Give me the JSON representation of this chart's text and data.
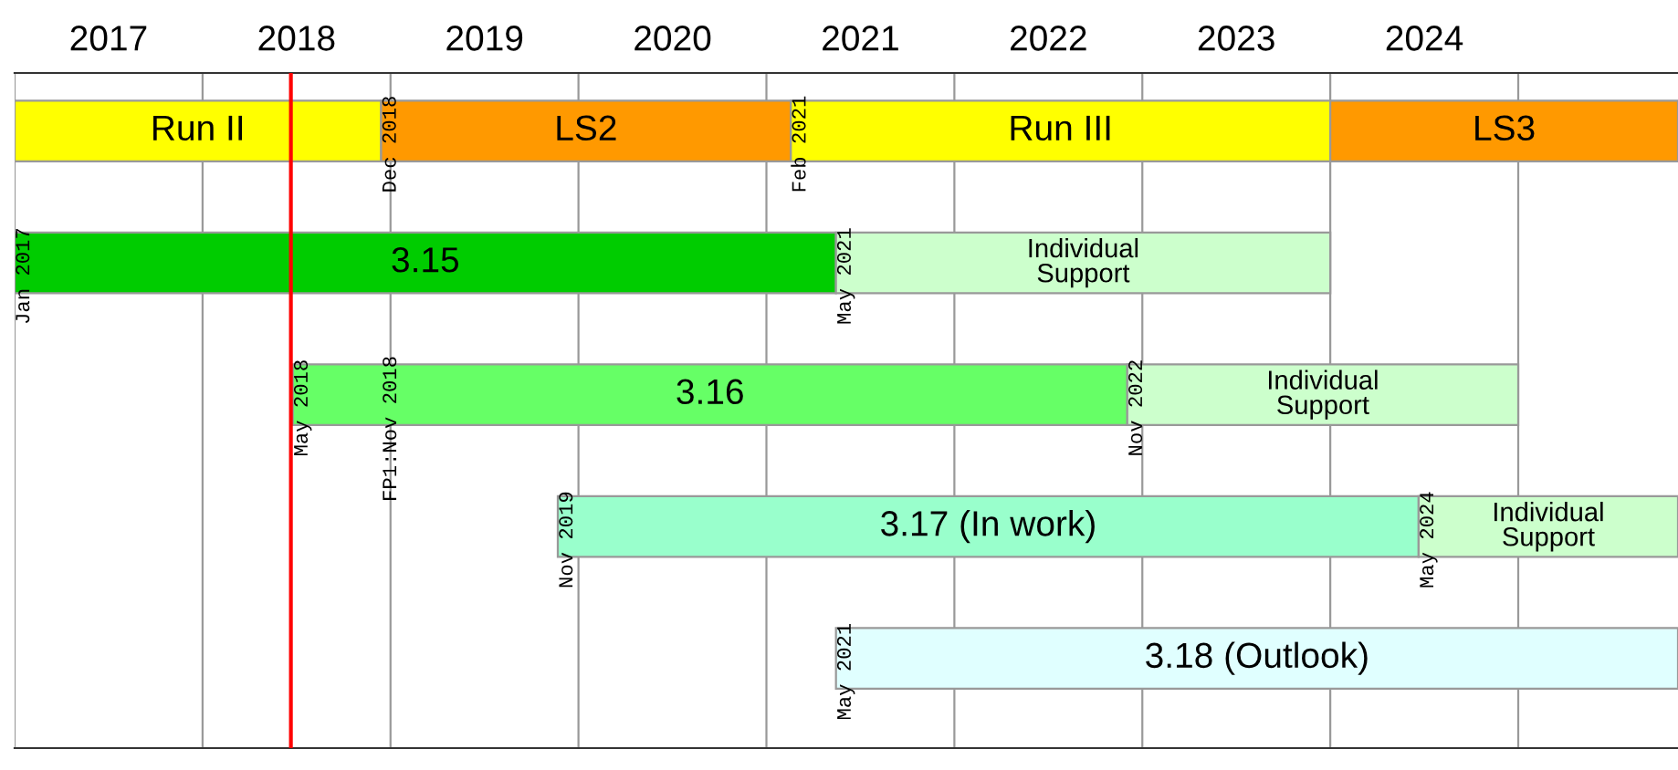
{
  "chart_data": {
    "type": "bar",
    "orientation": "horizontal",
    "categories": [
      null,
      null,
      null,
      null,
      null
    ],
    "xlim": [
      2017.0,
      2025.85
    ],
    "xticks": [
      {
        "value": 2017,
        "label": null
      },
      {
        "value": 2017.5,
        "label": "2017"
      },
      {
        "value": 2018,
        "label": null
      },
      {
        "value": 2018.5,
        "label": "2018"
      },
      {
        "value": 2019,
        "label": null
      },
      {
        "value": 2019.5,
        "label": "2019"
      },
      {
        "value": 2020,
        "label": null
      },
      {
        "value": 2020.5,
        "label": "2020"
      },
      {
        "value": 2021,
        "label": null
      },
      {
        "value": 2021.5,
        "label": "2021"
      },
      {
        "value": 2022,
        "label": null
      },
      {
        "value": 2022.5,
        "label": "2022"
      },
      {
        "value": 2023,
        "label": null
      },
      {
        "value": 2023.5,
        "label": "2023"
      },
      {
        "value": 2024,
        "label": null
      },
      {
        "value": 2024.5,
        "label": "2024"
      },
      {
        "value": 2025,
        "label": null
      }
    ],
    "tick_labels": "x",
    "grid": "x",
    "series": [
      {
        "name": "Run II",
        "color": "#ffff00",
        "base": [
          2017.0,
          null,
          null,
          null,
          null
        ],
        "values": [
          1.95,
          null,
          null,
          null,
          null
        ]
      },
      {
        "name": "LS2",
        "color": "#ff9900",
        "base": [
          2018.95,
          null,
          null,
          null,
          null
        ],
        "values": [
          2.18,
          null,
          null,
          null,
          null
        ]
      },
      {
        "name": "Run III",
        "color": "#ffff00",
        "base": [
          2021.13,
          null,
          null,
          null,
          null
        ],
        "values": [
          2.87,
          null,
          null,
          null,
          null
        ]
      },
      {
        "name": "LS3",
        "color": "#ff9900",
        "base": [
          2024.0,
          null,
          null,
          null,
          null
        ],
        "values": [
          1.85,
          null,
          null,
          null,
          null
        ]
      },
      {
        "name": "3.15",
        "color": "#00cc00",
        "base": [
          null,
          2017.0,
          null,
          null,
          null
        ],
        "values": [
          null,
          4.37,
          null,
          null,
          null
        ]
      },
      {
        "name": "Individual\nSupport",
        "color": "#ccffcc",
        "base": [
          null,
          2021.37,
          null,
          null,
          null
        ],
        "values": [
          null,
          2.63,
          null,
          null,
          null
        ]
      },
      {
        "name": "3.16",
        "color": "#66ff66",
        "base": [
          null,
          null,
          2018.48,
          null,
          null
        ],
        "values": [
          null,
          null,
          4.44,
          null,
          null
        ]
      },
      {
        "name": "Individual\nSupport",
        "color": "#ccffcc",
        "base": [
          null,
          null,
          2022.92,
          null,
          null
        ],
        "values": [
          null,
          null,
          2.08,
          null,
          null
        ]
      },
      {
        "name": "3.17 (In work)",
        "color": "#99ffcc",
        "base": [
          null,
          null,
          null,
          2019.89,
          null
        ],
        "values": [
          null,
          null,
          null,
          4.58,
          null
        ]
      },
      {
        "name": "Individual\nSupport",
        "color": "#ccffcc",
        "base": [
          null,
          null,
          null,
          2024.47,
          null
        ],
        "values": [
          null,
          null,
          null,
          1.38,
          null
        ]
      },
      {
        "name": "3.18 (Outlook)",
        "color": "#e0ffff",
        "base": [
          null,
          null,
          null,
          null,
          2021.37
        ],
        "values": [
          null,
          null,
          null,
          null,
          4.48
        ]
      }
    ],
    "ref_lines": [
      {
        "axis": "x",
        "value": 2018.47,
        "color": "#ff0000"
      }
    ],
    "annotations": [
      {
        "text": "Dec 2018",
        "x": 2018.95
      },
      {
        "text": "Feb 2021",
        "x": 2021.13
      },
      {
        "text": "Jan 2017",
        "x": 2017.0
      },
      {
        "text": "May 2021",
        "x": 2021.37
      },
      {
        "text": "May 2018",
        "x": 2018.48
      },
      "FP1:Nov 2018",
      {
        "text": "Nov 2022",
        "x": 2022.92
      },
      {
        "text": "Nov 2019",
        "x": 2019.89
      },
      {
        "text": "May 2024",
        "x": 2024.47
      },
      {
        "text": "May 2021",
        "x": 2021.37
      }
    ]
  }
}
